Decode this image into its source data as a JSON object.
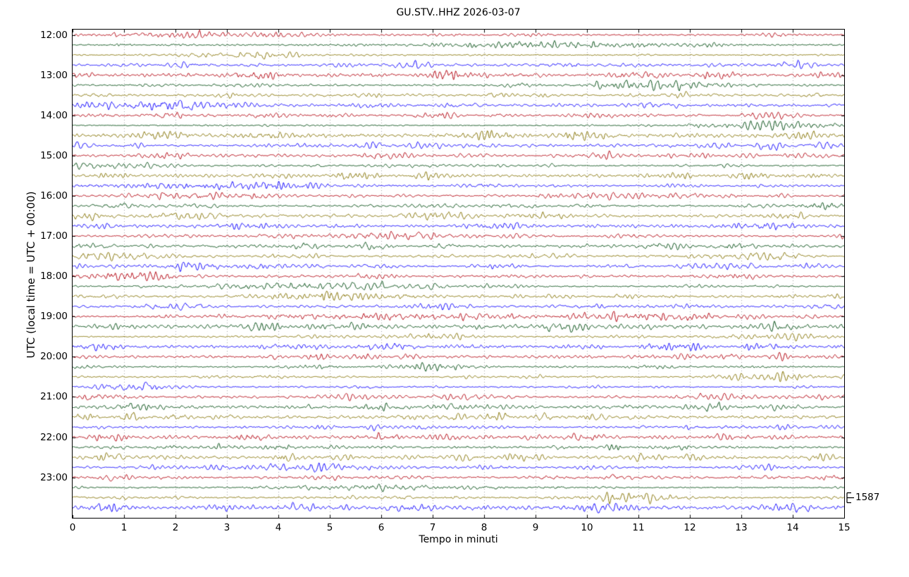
{
  "chart_data": {
    "type": "line",
    "subtype": "helicorder_dayplot",
    "title": "GU.STV..HHZ 2026-03-07",
    "xlabel": "Tempo in minuti",
    "ylabel": "UTC (local time = UTC + 00:00)",
    "xlim": [
      0,
      15
    ],
    "x_ticks": [
      "0",
      "1",
      "2",
      "3",
      "4",
      "5",
      "6",
      "7",
      "8",
      "9",
      "10",
      "11",
      "12",
      "13",
      "14",
      "15"
    ],
    "y_tick_labels": [
      "12:00",
      "13:00",
      "14:00",
      "15:00",
      "16:00",
      "17:00",
      "18:00",
      "19:00",
      "20:00",
      "21:00",
      "22:00",
      "23:00"
    ],
    "rows_per_hour": 4,
    "minutes_per_row": 15,
    "row_count": 48,
    "row_start_times": [
      "12:00",
      "12:15",
      "12:30",
      "12:45",
      "13:00",
      "13:15",
      "13:30",
      "13:45",
      "14:00",
      "14:15",
      "14:30",
      "14:45",
      "15:00",
      "15:15",
      "15:30",
      "15:45",
      "16:00",
      "16:15",
      "16:30",
      "16:45",
      "17:00",
      "17:15",
      "17:30",
      "17:45",
      "18:00",
      "18:15",
      "18:30",
      "18:45",
      "19:00",
      "19:15",
      "19:30",
      "19:45",
      "20:00",
      "20:15",
      "20:30",
      "20:45",
      "21:00",
      "21:15",
      "21:30",
      "21:45",
      "22:00",
      "22:15",
      "22:30",
      "22:45",
      "23:00",
      "23:15",
      "23:30",
      "23:45"
    ],
    "trace_colors": [
      "#B2000F",
      "#004C12",
      "#847200",
      "#0E01FF"
    ],
    "grid": {
      "vertical_dotted_per_minute": true,
      "color": "#8c8c8c"
    },
    "axis_color": "#000000",
    "amplitude_scale": {
      "label": "1587",
      "value": 1587,
      "row_index": 46
    },
    "signal": "continuous band-limited microseismic noise with varying burst envelopes; no large discrete events",
    "noise_seed": 12
  }
}
